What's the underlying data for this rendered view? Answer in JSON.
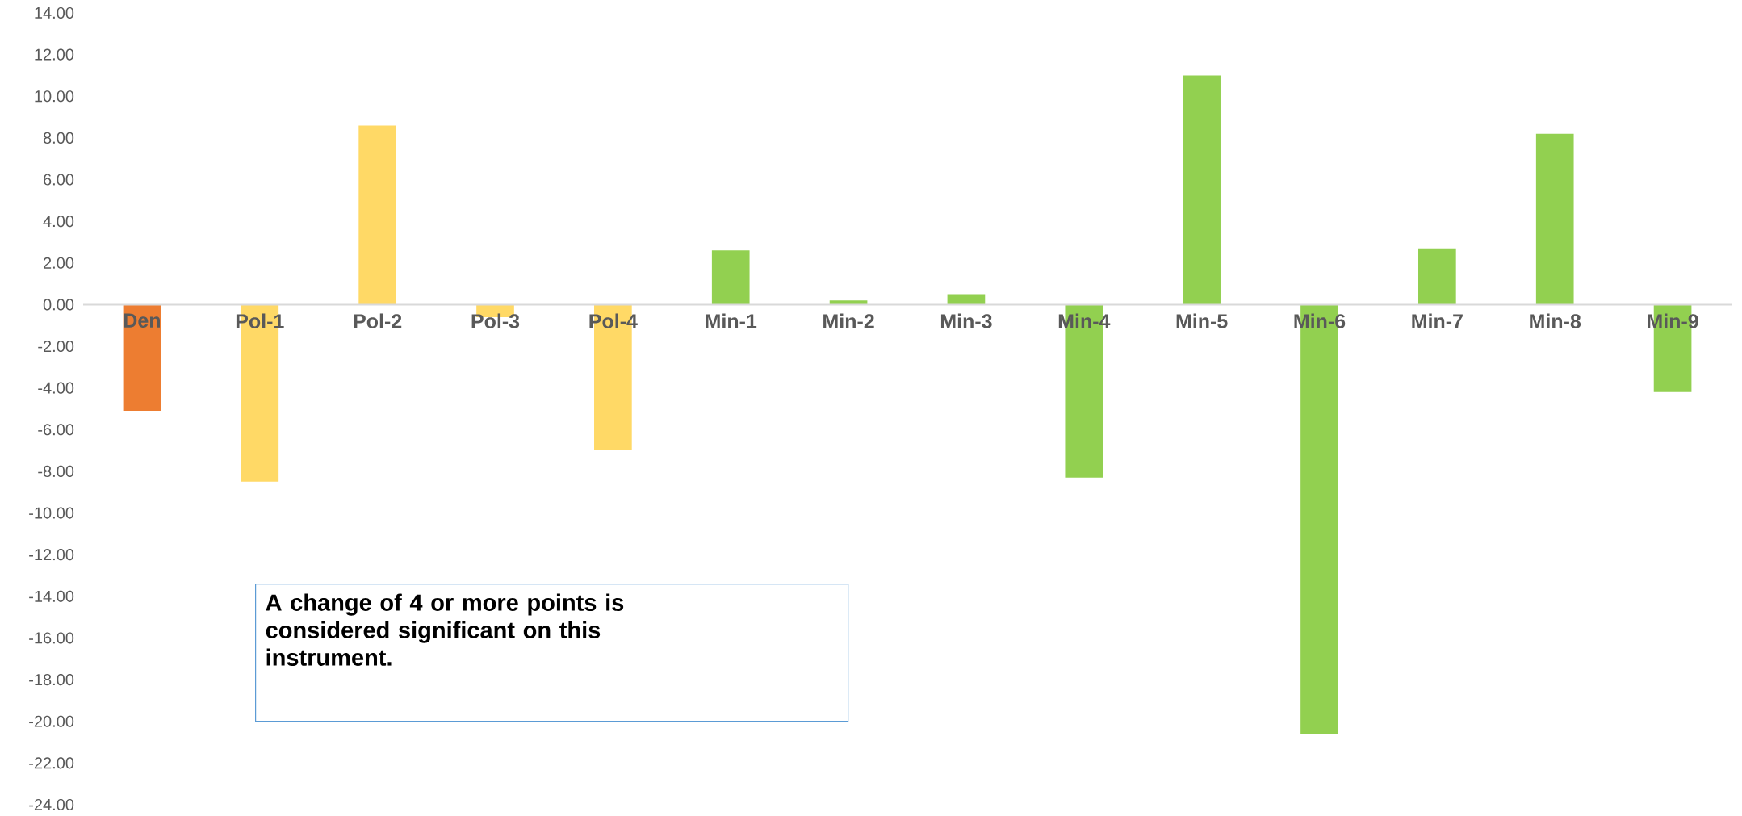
{
  "chart_data": {
    "type": "bar",
    "categories": [
      "Den",
      "Pol-1",
      "Pol-2",
      "Pol-3",
      "Pol-4",
      "Min-1",
      "Min-2",
      "Min-3",
      "Min-4",
      "Min-5",
      "Min-6",
      "Min-7",
      "Min-8",
      "Min-9"
    ],
    "values": [
      -5.1,
      -8.5,
      8.6,
      -0.6,
      -7.0,
      2.6,
      0.2,
      0.5,
      -8.3,
      11.0,
      -20.6,
      2.7,
      8.2,
      -4.2
    ],
    "colors": [
      "#ed7d31",
      "#ffd966",
      "#ffd966",
      "#ffd966",
      "#ffd966",
      "#92d050",
      "#92d050",
      "#92d050",
      "#92d050",
      "#92d050",
      "#92d050",
      "#92d050",
      "#92d050",
      "#92d050"
    ],
    "ylim": [
      -24,
      14
    ],
    "yticks": [
      {
        "value": -24,
        "label": "-24.00"
      },
      {
        "value": -22,
        "label": "-22.00"
      },
      {
        "value": -20,
        "label": "-20.00"
      },
      {
        "value": -18,
        "label": "-18.00"
      },
      {
        "value": -16,
        "label": "-16.00"
      },
      {
        "value": -14,
        "label": "-14.00"
      },
      {
        "value": -12,
        "label": "-12.00"
      },
      {
        "value": -10,
        "label": "-10.00"
      },
      {
        "value": -8,
        "label": "-8.00"
      },
      {
        "value": -6,
        "label": "-6.00"
      },
      {
        "value": -4,
        "label": "-4.00"
      },
      {
        "value": -2,
        "label": "-2.00"
      },
      {
        "value": 0,
        "label": "0.00"
      },
      {
        "value": 2,
        "label": "2.00"
      },
      {
        "value": 4,
        "label": "4.00"
      },
      {
        "value": 6,
        "label": "6.00"
      },
      {
        "value": 8,
        "label": "8.00"
      },
      {
        "value": 10,
        "label": "10.00"
      },
      {
        "value": 12,
        "label": "12.00"
      },
      {
        "value": 14,
        "label": "14.00"
      }
    ],
    "annotations": [
      "A change of  4 or more points is considered significant on this instrument."
    ]
  }
}
